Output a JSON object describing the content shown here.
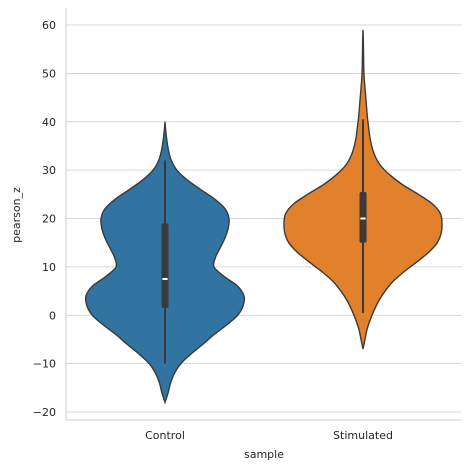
{
  "chart_data": {
    "type": "violin",
    "title": "",
    "xlabel": "sample",
    "ylabel": "pearson_z",
    "ylim": [
      -22,
      63
    ],
    "yticks": [
      -20,
      -10,
      0,
      10,
      20,
      30,
      40,
      50,
      60
    ],
    "ytick_labels": [
      "−20",
      "−10",
      "0",
      "10",
      "20",
      "30",
      "40",
      "50",
      "60"
    ],
    "grid": "horizontal",
    "categories": [
      "Control",
      "Stimulated"
    ],
    "colors": [
      "#3274a1",
      "#e1812c"
    ],
    "series": [
      {
        "category": "Control",
        "whisker": [
          -10,
          32
        ],
        "q1": 1.5,
        "median": 7.5,
        "q3": 19,
        "extent": [
          -18,
          40
        ],
        "density": [
          [
            -18,
            0.0
          ],
          [
            -16,
            0.04
          ],
          [
            -14,
            0.07
          ],
          [
            -12,
            0.12
          ],
          [
            -10,
            0.2
          ],
          [
            -8,
            0.33
          ],
          [
            -6,
            0.48
          ],
          [
            -4,
            0.62
          ],
          [
            -2,
            0.78
          ],
          [
            0,
            0.92
          ],
          [
            2,
            0.99
          ],
          [
            4,
            1.0
          ],
          [
            6,
            0.92
          ],
          [
            8,
            0.75
          ],
          [
            10,
            0.62
          ],
          [
            12,
            0.64
          ],
          [
            14,
            0.7
          ],
          [
            16,
            0.76
          ],
          [
            18,
            0.8
          ],
          [
            20,
            0.81
          ],
          [
            22,
            0.76
          ],
          [
            24,
            0.63
          ],
          [
            26,
            0.45
          ],
          [
            28,
            0.28
          ],
          [
            30,
            0.15
          ],
          [
            32,
            0.08
          ],
          [
            34,
            0.045
          ],
          [
            36,
            0.025
          ],
          [
            38,
            0.01
          ],
          [
            40,
            0.0
          ]
        ]
      },
      {
        "category": "Stimulated",
        "whisker": [
          0.5,
          40.5
        ],
        "q1": 15,
        "median": 20,
        "q3": 25.5,
        "extent": [
          -7,
          59
        ],
        "density": [
          [
            -7,
            0.0
          ],
          [
            -5,
            0.025
          ],
          [
            -3,
            0.05
          ],
          [
            -1,
            0.09
          ],
          [
            1,
            0.14
          ],
          [
            3,
            0.2
          ],
          [
            5,
            0.28
          ],
          [
            7,
            0.38
          ],
          [
            9,
            0.52
          ],
          [
            11,
            0.68
          ],
          [
            13,
            0.83
          ],
          [
            15,
            0.94
          ],
          [
            17,
            0.99
          ],
          [
            19,
            1.0
          ],
          [
            21,
            0.98
          ],
          [
            23,
            0.88
          ],
          [
            25,
            0.7
          ],
          [
            27,
            0.5
          ],
          [
            29,
            0.34
          ],
          [
            31,
            0.22
          ],
          [
            33,
            0.15
          ],
          [
            35,
            0.11
          ],
          [
            37,
            0.085
          ],
          [
            39,
            0.07
          ],
          [
            41,
            0.055
          ],
          [
            43,
            0.045
          ],
          [
            45,
            0.035
          ],
          [
            47,
            0.025
          ],
          [
            49,
            0.015
          ],
          [
            51,
            0.01
          ],
          [
            53,
            0.008
          ],
          [
            55,
            0.006
          ],
          [
            57,
            0.004
          ],
          [
            59,
            0.0
          ]
        ]
      }
    ]
  }
}
